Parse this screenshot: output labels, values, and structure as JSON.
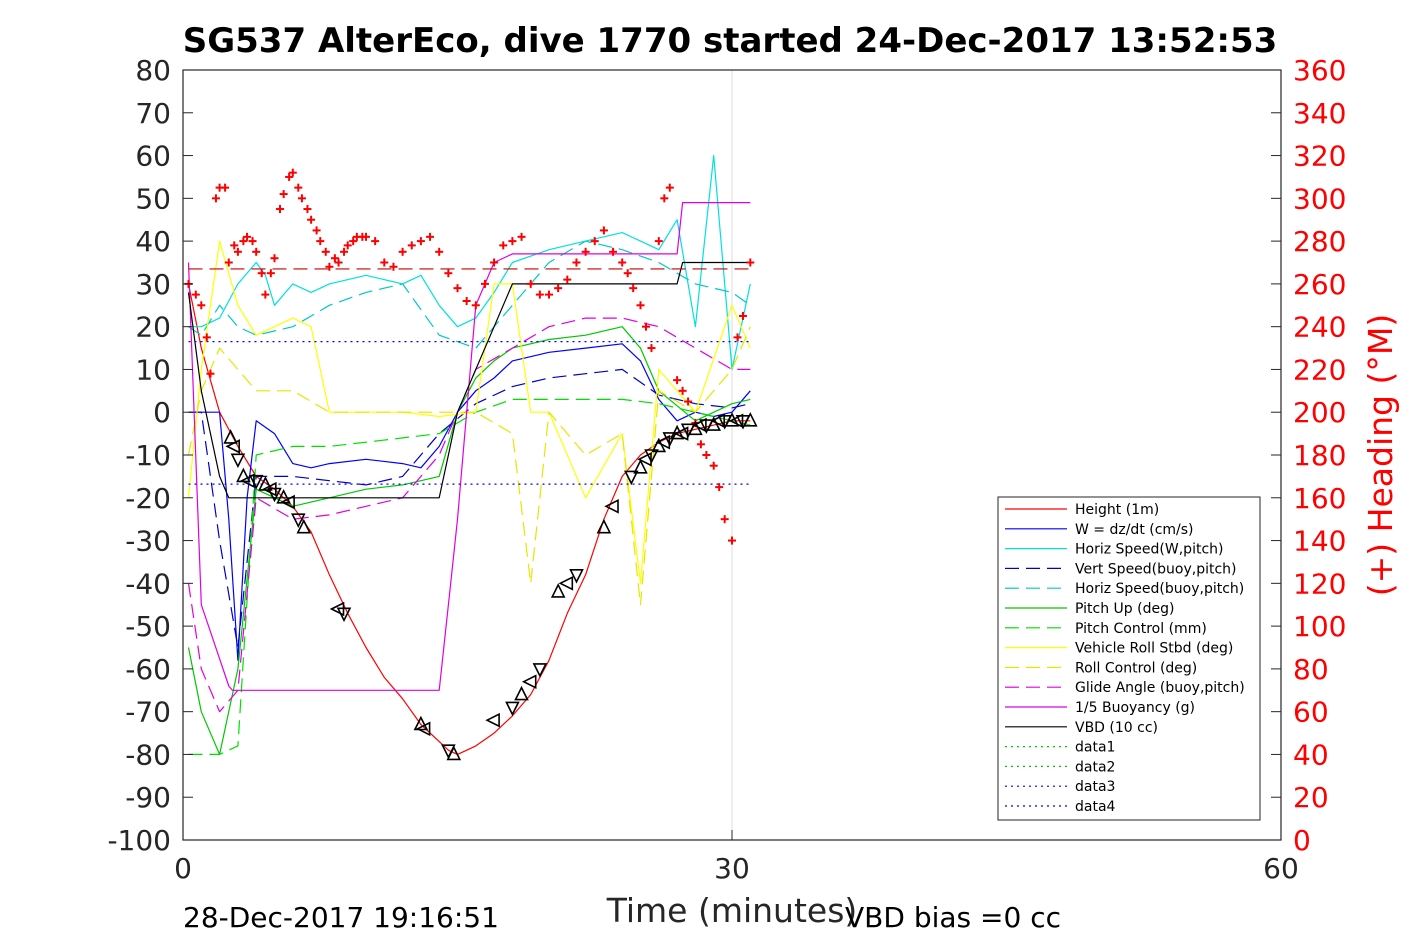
{
  "chart_data": {
    "type": "line",
    "title": "SG537 AlterEco, dive 1770 started 24-Dec-2017 13:52:53",
    "xlabel": "Time (minutes)",
    "ylabel": "",
    "y2label": "(+) Heading (°M)",
    "xlim": [
      0,
      60
    ],
    "ylim": [
      -100,
      80
    ],
    "y2lim": [
      0,
      360
    ],
    "x_ticks": [
      "0",
      "30",
      "60"
    ],
    "y_ticks": [
      "80",
      "70",
      "60",
      "50",
      "40",
      "30",
      "20",
      "10",
      "0",
      "-10",
      "-20",
      "-30",
      "-40",
      "-50",
      "-60",
      "-70",
      "-80",
      "-90",
      "-100"
    ],
    "y2_ticks": [
      "360",
      "340",
      "320",
      "300",
      "280",
      "260",
      "240",
      "220",
      "200",
      "180",
      "160",
      "140",
      "120",
      "100",
      "80",
      "60",
      "40",
      "20",
      "0"
    ],
    "grid": "x=30 only",
    "legend_position": "bottom-right",
    "footer_left": "28-Dec-2017 19:16:51",
    "footer_right": "VBD bias =0 cc",
    "series": [
      {
        "name": "Height (1m)",
        "color": "#ff0000",
        "style": "solid",
        "x": [
          0.3,
          1,
          2,
          3,
          4,
          5,
          6,
          7,
          8,
          9,
          10,
          11,
          12,
          13,
          14,
          14.5,
          15,
          15.5,
          16,
          17,
          18,
          19,
          20,
          21,
          22,
          23,
          24,
          25,
          26,
          27,
          28,
          29,
          30,
          30.5,
          31
        ],
        "y": [
          30,
          15,
          0,
          -8,
          -15,
          -18,
          -22,
          -28,
          -38,
          -47,
          -55,
          -62,
          -67,
          -73,
          -77,
          -79,
          -80,
          -79,
          -78,
          -75,
          -71,
          -66,
          -58,
          -47,
          -38,
          -25,
          -15,
          -10,
          -7,
          -5,
          -4,
          -3,
          -2,
          -2,
          -2
        ]
      },
      {
        "name": "W = dz/dt (cm/s)",
        "color": "#0000ff",
        "style": "solid",
        "x": [
          0.3,
          1,
          2,
          2.5,
          3,
          3.5,
          4,
          5,
          6,
          7,
          8,
          10,
          12,
          13,
          14,
          15,
          16,
          17,
          18,
          20,
          22,
          24,
          25,
          26,
          27,
          28,
          29,
          30,
          31
        ],
        "y": [
          0,
          0,
          0,
          -25,
          -58,
          -20,
          -2,
          -5,
          -12,
          -13,
          -12,
          -11,
          -12,
          -13,
          -8,
          0,
          5,
          8,
          12,
          14,
          15,
          16,
          12,
          3,
          -2,
          0,
          -1,
          0,
          5
        ]
      },
      {
        "name": "Horiz Speed(W,pitch)",
        "color": "#00e0e0",
        "style": "solid",
        "x": [
          0.3,
          1,
          2,
          3,
          4,
          4.5,
          5,
          6,
          7,
          8,
          10,
          12,
          13,
          14,
          15,
          16,
          17,
          18,
          20,
          22,
          24,
          25,
          26,
          27,
          28,
          29,
          30,
          31
        ],
        "y": [
          20,
          20,
          22,
          30,
          35,
          32,
          25,
          30,
          28,
          30,
          32,
          30,
          32,
          25,
          20,
          22,
          28,
          35,
          38,
          40,
          42,
          40,
          38,
          45,
          20,
          60,
          10,
          30
        ]
      },
      {
        "name": "Vert Speed(buoy,pitch)",
        "color": "#0000c8",
        "style": "dashed",
        "x": [
          0.3,
          1,
          2,
          3,
          4,
          6,
          8,
          10,
          12,
          14,
          16,
          18,
          20,
          22,
          24,
          26,
          28,
          30,
          31
        ],
        "y": [
          0,
          0,
          -30,
          -55,
          -15,
          -15,
          -16,
          -17,
          -15,
          -5,
          2,
          6,
          8,
          9,
          10,
          4,
          2,
          1,
          2
        ]
      },
      {
        "name": "Horiz Speed(buoy,pitch)",
        "color": "#00c8c8",
        "style": "dashed",
        "x": [
          0.3,
          1,
          2,
          3,
          4,
          6,
          8,
          10,
          12,
          14,
          16,
          18,
          20,
          22,
          24,
          26,
          28,
          30,
          31
        ],
        "y": [
          20,
          18,
          25,
          20,
          18,
          20,
          25,
          28,
          30,
          18,
          15,
          25,
          35,
          40,
          38,
          35,
          30,
          28,
          25
        ]
      },
      {
        "name": "Pitch Up (deg)",
        "color": "#00c800",
        "style": "solid",
        "x": [
          0.3,
          1,
          2,
          3,
          4,
          6,
          8,
          10,
          12,
          14,
          15,
          16,
          17,
          18,
          20,
          22,
          24,
          25,
          26,
          28,
          30,
          31
        ],
        "y": [
          -55,
          -70,
          -80,
          -60,
          -18,
          -22,
          -20,
          -18,
          -17,
          -15,
          0,
          8,
          12,
          15,
          17,
          18,
          20,
          15,
          5,
          -2,
          2,
          3
        ]
      },
      {
        "name": "Pitch Control (mm)",
        "color": "#00e000",
        "style": "dashed",
        "x": [
          0.3,
          1,
          2,
          3,
          4,
          6,
          8,
          10,
          12,
          14,
          16,
          18,
          20,
          22,
          24,
          26,
          28,
          30,
          31
        ],
        "y": [
          -80,
          -80,
          -80,
          -78,
          -10,
          -8,
          -8,
          -7,
          -6,
          -5,
          0,
          3,
          3,
          3,
          3,
          2,
          0,
          -2,
          -3
        ]
      },
      {
        "name": "Vehicle Roll Stbd (deg)",
        "color": "#ffff00",
        "style": "solid",
        "x": [
          0.3,
          1,
          2,
          3,
          4,
          5,
          6,
          7,
          8,
          9,
          12,
          14,
          16,
          17,
          18,
          19,
          20,
          22,
          24,
          25,
          26,
          28,
          30,
          31
        ],
        "y": [
          -20,
          10,
          40,
          25,
          18,
          20,
          22,
          20,
          0,
          0,
          0,
          -1,
          0,
          30,
          30,
          0,
          0,
          -20,
          -5,
          -40,
          10,
          0,
          25,
          15
        ]
      },
      {
        "name": "Roll Control (deg)",
        "color": "#e6e600",
        "style": "dashed",
        "x": [
          0.3,
          1,
          2,
          3,
          4,
          6,
          8,
          10,
          12,
          14,
          16,
          18,
          19,
          20,
          22,
          24,
          25,
          26,
          28,
          30,
          31
        ],
        "y": [
          -10,
          5,
          15,
          10,
          5,
          5,
          0,
          0,
          0,
          0,
          0,
          -5,
          -40,
          0,
          -10,
          -5,
          -45,
          5,
          0,
          10,
          20
        ]
      },
      {
        "name": "Glide Angle (buoy,pitch)",
        "color": "#e000e0",
        "style": "dashed",
        "x": [
          0.3,
          1,
          2,
          3,
          4,
          6,
          8,
          10,
          12,
          14,
          16,
          18,
          20,
          22,
          24,
          26,
          28,
          30,
          31
        ],
        "y": [
          -40,
          -60,
          -70,
          -65,
          -20,
          -25,
          -24,
          -22,
          -20,
          -10,
          10,
          15,
          20,
          22,
          22,
          20,
          15,
          10,
          10
        ]
      },
      {
        "name": "1/5 Buoyancy (g)",
        "color": "#e000e0",
        "style": "solid",
        "x": [
          0.3,
          1,
          2.5,
          2.7,
          8,
          10,
          12,
          13,
          14,
          14.5,
          15,
          16,
          17,
          18,
          20,
          22,
          24,
          26,
          27,
          27.3,
          28,
          30,
          31
        ],
        "y": [
          35,
          -45,
          -64,
          -65,
          -65,
          -65,
          -65,
          -65,
          -65,
          -45,
          -25,
          25,
          35,
          37,
          37,
          37,
          37,
          37,
          37,
          49,
          49,
          49,
          49
        ]
      },
      {
        "name": "VBD (10 cc)",
        "color": "#000000",
        "style": "solid",
        "x": [
          0.3,
          1,
          2,
          2.5,
          5,
          10,
          13,
          14,
          14.5,
          15,
          16,
          17,
          18,
          20,
          22,
          24,
          26,
          27,
          27.3,
          28,
          30,
          31
        ],
        "y": [
          28,
          5,
          -15,
          -20,
          -20,
          -20,
          -20,
          -20,
          -10,
          0,
          10,
          20,
          30,
          30,
          30,
          30,
          30,
          30,
          35,
          35,
          35,
          35
        ]
      },
      {
        "name": "data1",
        "color": "#00c800",
        "style": "dotted",
        "x": [],
        "y": []
      },
      {
        "name": "data2",
        "color": "#00c800",
        "style": "dotted",
        "x": [],
        "y": []
      },
      {
        "name": "data3",
        "color": "#0000ff",
        "style": "dotted",
        "x": [
          0.3,
          31
        ],
        "y": [
          16.5,
          16.5
        ]
      },
      {
        "name": "data4",
        "color": "#0000ff",
        "style": "dotted",
        "x": [
          0.3,
          31
        ],
        "y": [
          -16.8,
          -16.8
        ]
      }
    ],
    "heading_reference": {
      "color": "#c80000",
      "style": "dashed",
      "y2": 267
    },
    "heading": {
      "color": "#ff0000",
      "x": [
        0.3,
        0.7,
        1,
        1.3,
        1.5,
        1.8,
        2,
        2.3,
        2.5,
        2.8,
        3,
        3.3,
        3.5,
        3.8,
        4,
        4.3,
        4.5,
        4.8,
        5,
        5.3,
        5.5,
        5.8,
        6,
        6.3,
        6.5,
        6.8,
        7,
        7.3,
        7.5,
        7.8,
        8,
        8.3,
        8.5,
        8.8,
        9,
        9.3,
        9.5,
        9.8,
        10,
        10.5,
        11,
        11.5,
        12,
        12.5,
        13,
        13.5,
        14,
        14.5,
        15,
        15.5,
        16,
        16.5,
        17,
        17.5,
        18,
        18.5,
        19,
        19.5,
        20,
        20.5,
        21,
        21.5,
        22,
        22.5,
        23,
        23.5,
        24,
        24.3,
        24.6,
        25,
        25.3,
        25.6,
        26,
        26.3,
        26.6,
        27,
        27.3,
        27.6,
        28,
        28.3,
        28.6,
        29,
        29.3,
        29.6,
        30,
        30.3,
        30.6,
        31
      ],
      "y2": [
        260,
        255,
        250,
        235,
        218,
        300,
        305,
        305,
        270,
        278,
        275,
        280,
        282,
        280,
        275,
        265,
        255,
        265,
        272,
        295,
        302,
        310,
        312,
        305,
        300,
        295,
        290,
        285,
        280,
        275,
        268,
        272,
        270,
        275,
        278,
        280,
        282,
        282,
        282,
        280,
        270,
        268,
        275,
        278,
        280,
        282,
        275,
        265,
        258,
        252,
        250,
        260,
        270,
        278,
        280,
        282,
        260,
        255,
        255,
        258,
        262,
        270,
        275,
        280,
        285,
        275,
        270,
        265,
        258,
        250,
        240,
        230,
        280,
        300,
        305,
        215,
        210,
        205,
        195,
        185,
        180,
        175,
        165,
        150,
        140,
        235,
        245,
        270
      ]
    },
    "triangles": {
      "color": "#000000",
      "x": [
        2.6,
        2.8,
        3,
        3.3,
        3.6,
        4,
        4.5,
        4.8,
        5,
        5.5,
        5.8,
        6.3,
        6.6,
        8.5,
        8.8,
        13,
        13.2,
        14.5,
        14.8,
        17,
        18,
        18.5,
        19,
        19.5,
        20.5,
        21,
        21.5,
        23,
        23.5,
        24.5,
        25,
        25.3,
        25.6,
        26,
        26.3,
        26.6,
        27,
        27.3,
        27.6,
        28,
        28.3,
        28.6,
        29,
        29.3,
        29.6,
        30,
        30.3,
        30.6,
        31
      ],
      "y": [
        -6,
        -8,
        -11,
        -15,
        -16,
        -16,
        -17,
        -18,
        -19,
        -20,
        -21,
        -25,
        -27,
        -46,
        -47,
        -73,
        -74,
        -79,
        -80,
        -72,
        -69,
        -66,
        -63,
        -60,
        -42,
        -40,
        -38,
        -27,
        -22,
        -15,
        -13,
        -11,
        -10,
        -8,
        -7,
        -6,
        -5,
        -5,
        -4,
        -4,
        -3,
        -3,
        -3,
        -2,
        -2,
        -2,
        -2,
        -2,
        -2
      ]
    }
  }
}
